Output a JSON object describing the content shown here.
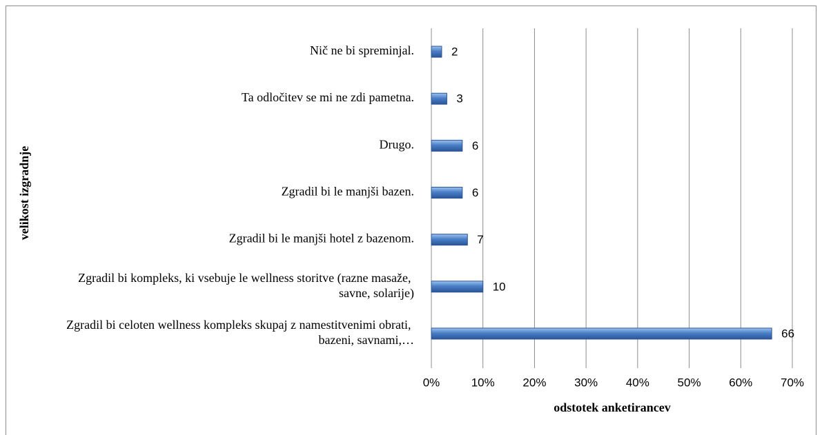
{
  "chart_data": {
    "type": "bar",
    "orientation": "horizontal",
    "categories": [
      "Nič ne bi spreminjal.",
      "Ta odločitev se mi ne zdi pametna.",
      "Drugo.",
      "Zgradil bi le manjši bazen.",
      "Zgradil bi le manjši hotel z bazenom.",
      "Zgradil bi kompleks, ki vsebuje le wellness storitve (razne masaže, savne, solarije)",
      "Zgradil bi celoten wellness kompleks skupaj z namestitvenimi obrati, bazeni, savnami,…"
    ],
    "values": [
      2,
      3,
      6,
      6,
      7,
      10,
      66
    ],
    "color": "#4a7fc8",
    "xlim": [
      0,
      70
    ],
    "xticks": [
      {
        "value": 0,
        "label": "0%"
      },
      {
        "value": 10,
        "label": "10%"
      },
      {
        "value": 20,
        "label": "20%"
      },
      {
        "value": 30,
        "label": "30%"
      },
      {
        "value": 40,
        "label": "40%"
      },
      {
        "value": 50,
        "label": "50%"
      },
      {
        "value": 60,
        "label": "60%"
      },
      {
        "value": 70,
        "label": "70%"
      }
    ],
    "grid": true,
    "xlabel": "odstotek anketirancev",
    "ylabel": "velikost izgradnje"
  }
}
